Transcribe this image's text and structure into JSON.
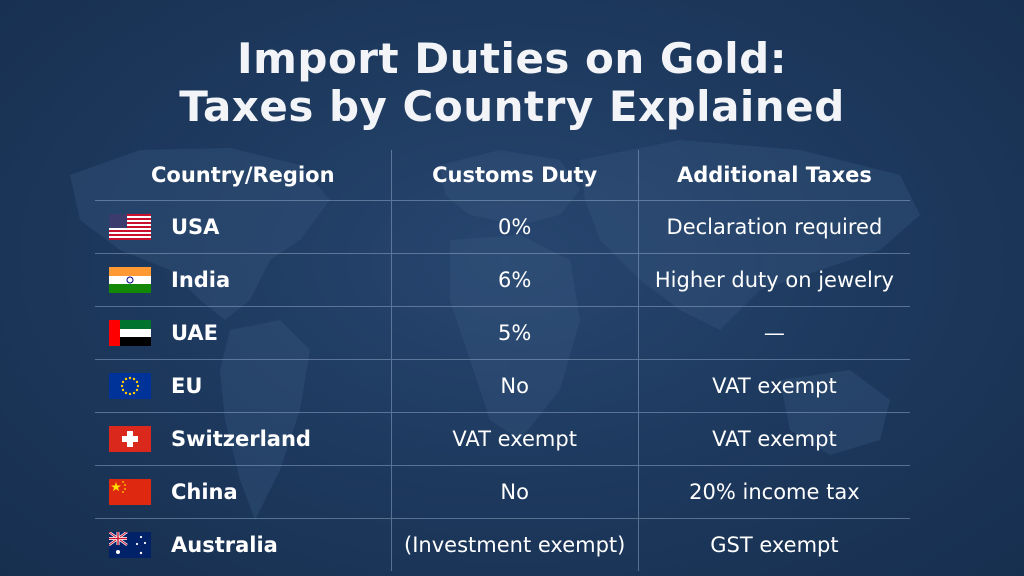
{
  "title": {
    "line1": "Import Duties on Gold:",
    "line2": "Taxes by Country Explained"
  },
  "table": {
    "headers": [
      "Country/Region",
      "Customs Duty",
      "Additional Taxes"
    ],
    "rows": [
      {
        "country": "USA",
        "flag": "us-flag-icon",
        "duty": "0%",
        "additional": "Declaration required"
      },
      {
        "country": "India",
        "flag": "india-flag-icon",
        "duty": "6%",
        "additional": "Higher duty on jewelry"
      },
      {
        "country": "UAE",
        "flag": "uae-flag-icon",
        "duty": "5%",
        "additional": "—"
      },
      {
        "country": "EU",
        "flag": "eu-flag-icon",
        "duty": "No",
        "additional": "VAT exempt"
      },
      {
        "country": "Switzerland",
        "flag": "switzerland-flag-icon",
        "duty": "VAT exempt",
        "additional": "VAT exempt"
      },
      {
        "country": "China",
        "flag": "china-flag-icon",
        "duty": "No",
        "additional": "20% income tax"
      },
      {
        "country": "Australia",
        "flag": "australia-flag-icon",
        "duty": "(Investment exempt)",
        "additional": "GST exempt"
      }
    ]
  },
  "colors": {
    "background": "#1e3a5f",
    "text": "#ffffff",
    "divider": "#a0b9d7"
  }
}
